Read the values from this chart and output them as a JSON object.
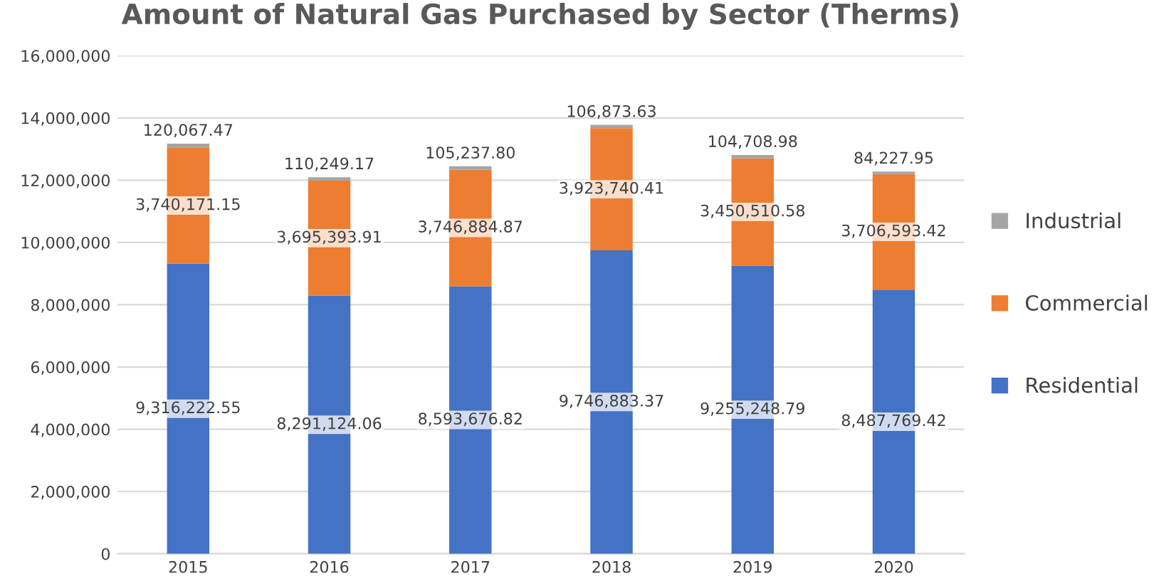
{
  "chart_data": {
    "type": "bar",
    "stacked": true,
    "title": "Amount of Natural Gas Purchased by Sector (Therms)",
    "categories": [
      "2015",
      "2016",
      "2017",
      "2018",
      "2019",
      "2020"
    ],
    "series": [
      {
        "name": "Residential",
        "color": "#4472c4",
        "values": [
          9316222.55,
          8291124.06,
          8593676.82,
          9746883.37,
          9255248.79,
          8487769.42
        ],
        "value_labels": [
          "9,316,222.55",
          "8,291,124.06",
          "8,593,676.82",
          "9,746,883.37",
          "9,255,248.79",
          "8,487,769.42"
        ]
      },
      {
        "name": "Commercial",
        "color": "#ed7d31",
        "values": [
          3740171.15,
          3695393.91,
          3746884.87,
          3923740.41,
          3450510.58,
          3706593.42
        ],
        "value_labels": [
          "3,740,171.15",
          "3,695,393.91",
          "3,746,884.87",
          "3,923,740.41",
          "3,450,510.58",
          "3,706,593.42"
        ]
      },
      {
        "name": "Industrial",
        "color": "#a5a5a5",
        "values": [
          120067.47,
          110249.17,
          105237.8,
          106873.63,
          104708.98,
          84227.95
        ],
        "value_labels": [
          "120,067.47",
          "110,249.17",
          "105,237.80",
          "106,873.63",
          "104,708.98",
          "84,227.95"
        ]
      }
    ],
    "ylim": [
      0,
      16000000
    ],
    "yticks": [
      {
        "value": 0,
        "label": "0"
      },
      {
        "value": 2000000,
        "label": "2,000,000"
      },
      {
        "value": 4000000,
        "label": "4,000,000"
      },
      {
        "value": 6000000,
        "label": "6,000,000"
      },
      {
        "value": 8000000,
        "label": "8,000,000"
      },
      {
        "value": 10000000,
        "label": "10,000,000"
      },
      {
        "value": 12000000,
        "label": "12,000,000"
      },
      {
        "value": 14000000,
        "label": "14,000,000"
      },
      {
        "value": 16000000,
        "label": "16,000,000"
      }
    ],
    "grid": "y",
    "legend": "right"
  }
}
